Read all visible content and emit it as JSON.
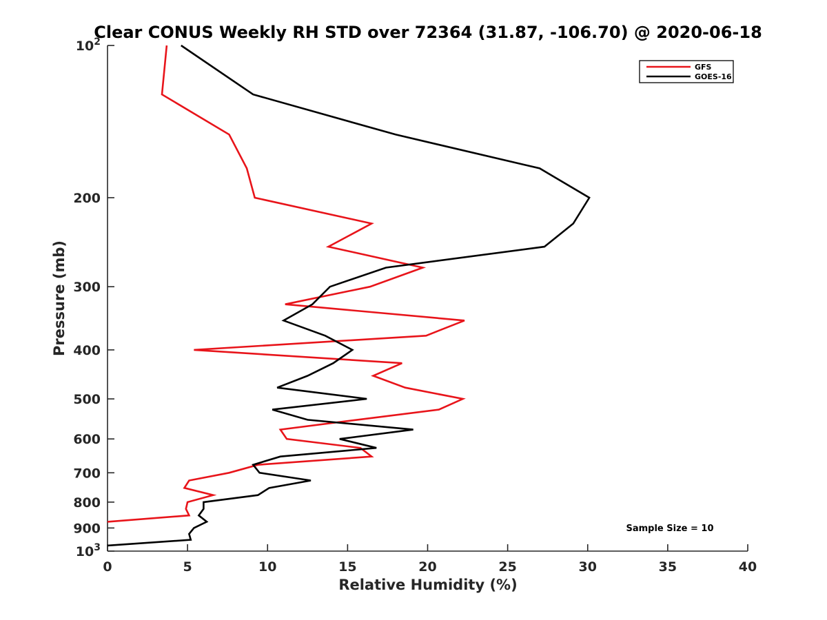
{
  "chart_data": {
    "type": "line",
    "title": "Clear CONUS Weekly RH STD over 72364 (31.87, -106.70) @ 2020-06-18",
    "xlabel": "Relative Humidity (%)",
    "ylabel": "Pressure (mb)",
    "xlim": [
      0,
      40
    ],
    "ylim": [
      100,
      1000
    ],
    "y_scale": "log",
    "y_reversed": true,
    "grid": false,
    "legend_position": "top-right",
    "annotation": "Sample Size = 10",
    "x_ticks": [
      "0",
      "5",
      "10",
      "15",
      "20",
      "25",
      "30",
      "35",
      "40"
    ],
    "x_tick_values": [
      0,
      5,
      10,
      15,
      20,
      25,
      30,
      35,
      40
    ],
    "y_ticks": [
      {
        "value": 100,
        "label": "10",
        "sup": "2"
      },
      {
        "value": 200,
        "label": "200",
        "sup": ""
      },
      {
        "value": 300,
        "label": "300",
        "sup": ""
      },
      {
        "value": 400,
        "label": "400",
        "sup": ""
      },
      {
        "value": 500,
        "label": "500",
        "sup": ""
      },
      {
        "value": 600,
        "label": "600",
        "sup": ""
      },
      {
        "value": 700,
        "label": "700",
        "sup": ""
      },
      {
        "value": 800,
        "label": "800",
        "sup": ""
      },
      {
        "value": 900,
        "label": "900",
        "sup": ""
      },
      {
        "value": 1000,
        "label": "10",
        "sup": "3"
      }
    ],
    "series": [
      {
        "name": "GFS",
        "color": "#e8141a",
        "points": [
          [
            3.7,
            100
          ],
          [
            3.4,
            125
          ],
          [
            7.6,
            150
          ],
          [
            8.7,
            175
          ],
          [
            9.2,
            200
          ],
          [
            16.5,
            225
          ],
          [
            13.8,
            250
          ],
          [
            19.7,
            275
          ],
          [
            16.4,
            300
          ],
          [
            11.1,
            325
          ],
          [
            22.3,
            350
          ],
          [
            19.9,
            375
          ],
          [
            5.4,
            400
          ],
          [
            18.4,
            425
          ],
          [
            16.6,
            450
          ],
          [
            18.6,
            475
          ],
          [
            22.2,
            500
          ],
          [
            20.7,
            525
          ],
          [
            15.6,
            550
          ],
          [
            10.8,
            575
          ],
          [
            11.2,
            600
          ],
          [
            15.8,
            625
          ],
          [
            16.5,
            650
          ],
          [
            9.4,
            675
          ],
          [
            7.6,
            700
          ],
          [
            5.1,
            725
          ],
          [
            4.8,
            750
          ],
          [
            6.6,
            775
          ],
          [
            5.0,
            800
          ],
          [
            4.9,
            825
          ],
          [
            5.1,
            850
          ],
          [
            0.0,
            875
          ]
        ]
      },
      {
        "name": "GOES-16",
        "color": "#000000",
        "points": [
          [
            4.6,
            100
          ],
          [
            9.1,
            125
          ],
          [
            18.0,
            150
          ],
          [
            27.0,
            175
          ],
          [
            30.1,
            200
          ],
          [
            29.1,
            225
          ],
          [
            27.3,
            250
          ],
          [
            17.4,
            275
          ],
          [
            13.9,
            300
          ],
          [
            12.8,
            325
          ],
          [
            11.0,
            350
          ],
          [
            13.6,
            375
          ],
          [
            15.3,
            400
          ],
          [
            14.1,
            425
          ],
          [
            12.5,
            450
          ],
          [
            10.6,
            475
          ],
          [
            16.2,
            500
          ],
          [
            10.3,
            525
          ],
          [
            12.5,
            550
          ],
          [
            19.1,
            575
          ],
          [
            14.5,
            600
          ],
          [
            16.8,
            625
          ],
          [
            10.8,
            650
          ],
          [
            9.1,
            675
          ],
          [
            9.5,
            700
          ],
          [
            12.7,
            725
          ],
          [
            10.1,
            750
          ],
          [
            9.4,
            775
          ],
          [
            6.0,
            800
          ],
          [
            6.0,
            825
          ],
          [
            5.7,
            850
          ],
          [
            6.2,
            875
          ],
          [
            5.4,
            900
          ],
          [
            5.1,
            925
          ],
          [
            5.2,
            950
          ],
          [
            0.0,
            975
          ]
        ]
      }
    ]
  }
}
